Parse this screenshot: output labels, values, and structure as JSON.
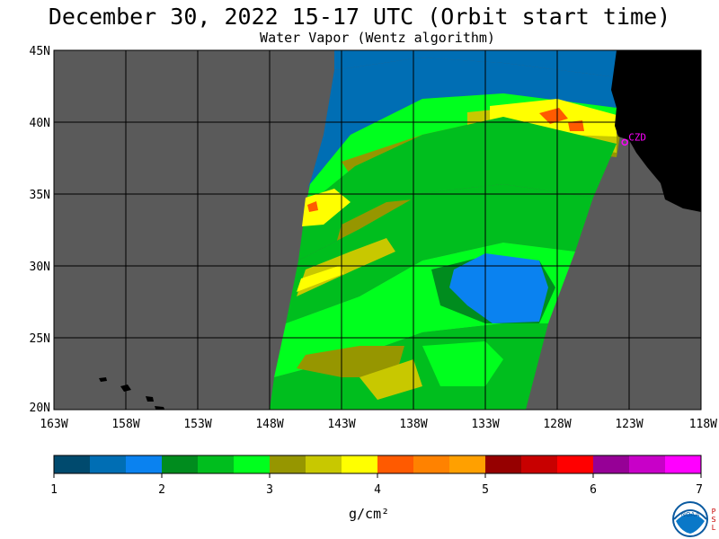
{
  "header": {
    "title": "December 30, 2022  15-17 UTC  (Orbit start time)",
    "subtitle": "Water Vapor (Wentz algorithm)"
  },
  "map": {
    "lat_labels": [
      "45N",
      "40N",
      "35N",
      "30N",
      "25N",
      "20N"
    ],
    "lat_values": [
      45,
      40,
      35,
      30,
      25,
      20
    ],
    "lon_labels": [
      "163W",
      "158W",
      "153W",
      "148W",
      "143W",
      "138W",
      "133W",
      "128W",
      "123W",
      "118W"
    ],
    "lon_values": [
      -163,
      -158,
      -153,
      -148,
      -143,
      -138,
      -133,
      -128,
      -123,
      -118
    ],
    "lat_range": [
      20,
      45
    ],
    "lon_range": [
      -163,
      -118
    ],
    "grid": true,
    "station_label": "CZD",
    "station_lat": 38.6,
    "station_lon": -123.3,
    "colors": {
      "no_data": "#5a5a5a",
      "land": "#000000",
      "grid": "#000000",
      "station": "#ff00ff"
    }
  },
  "colorbar": {
    "tick_labels": [
      "1",
      "2",
      "3",
      "4",
      "5",
      "6",
      "7"
    ],
    "tick_values": [
      1,
      2,
      3,
      4,
      5,
      6,
      7
    ],
    "unit": "g/cm²",
    "colors": [
      "#004a6e",
      "#006eb4",
      "#0a82f0",
      "#008c1e",
      "#00be1e",
      "#00ff1e",
      "#969600",
      "#c8c800",
      "#ffff00",
      "#ff5a00",
      "#ff8200",
      "#ffa000",
      "#960000",
      "#c80000",
      "#ff0000",
      "#960096",
      "#c800c8",
      "#ff00ff"
    ]
  },
  "logo": {
    "text": "NOAA",
    "side_letters": [
      "P",
      "S",
      "L"
    ]
  }
}
